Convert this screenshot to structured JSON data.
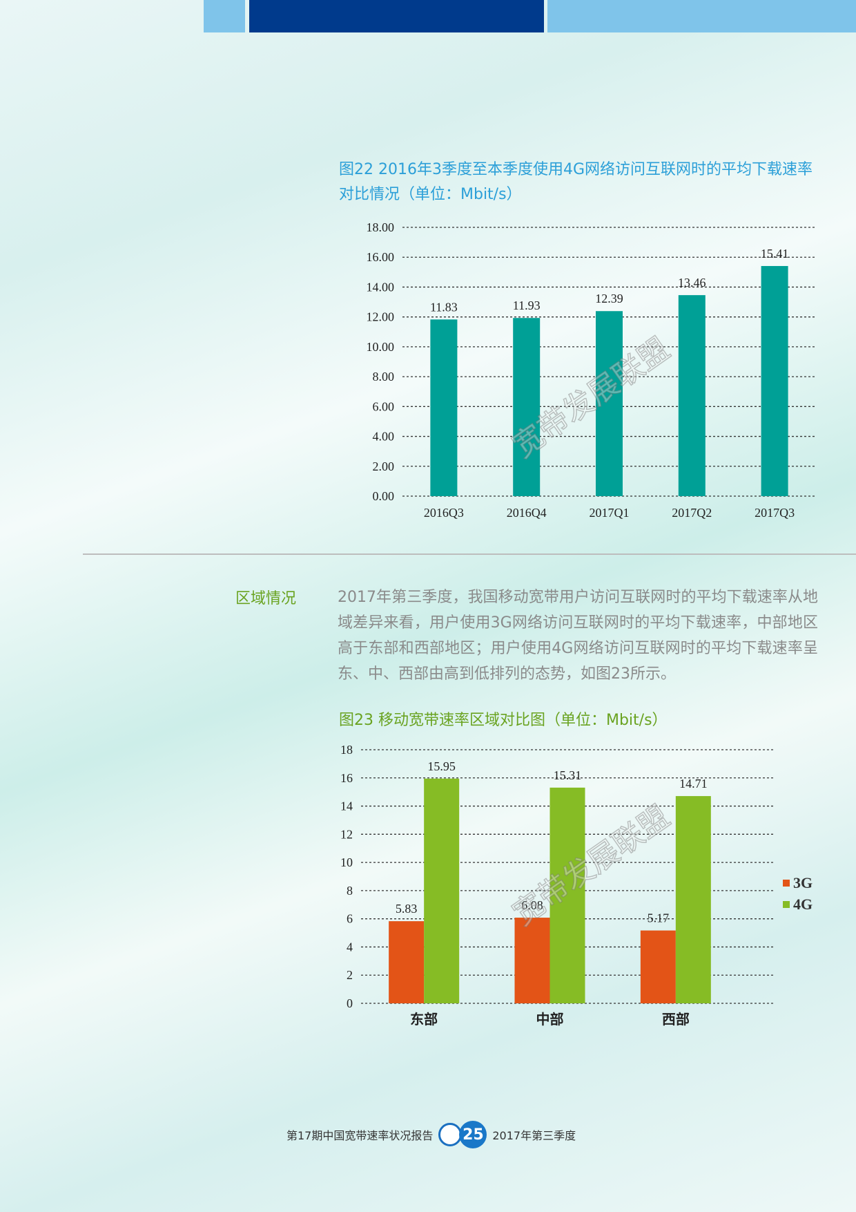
{
  "chart_data": [
    {
      "type": "bar",
      "title": "图22 2016年3季度至本季度使用4G网络访问互联网时的平均下载速率对比情况（单位：Mbit/s）",
      "categories": [
        "2016Q3",
        "2016Q4",
        "2017Q1",
        "2017Q2",
        "2017Q3"
      ],
      "values": [
        11.83,
        11.93,
        12.39,
        13.46,
        15.41
      ],
      "color": "#00a096",
      "ylim": [
        0,
        18
      ],
      "yticks": [
        {
          "value": 0,
          "label": "0.00"
        },
        {
          "value": 2,
          "label": "2.00"
        },
        {
          "value": 4,
          "label": "4.00"
        },
        {
          "value": 6,
          "label": "6.00"
        },
        {
          "value": 8,
          "label": "8.00"
        },
        {
          "value": 10,
          "label": "10.00"
        },
        {
          "value": 12,
          "label": "12.00"
        },
        {
          "value": 14,
          "label": "14.00"
        },
        {
          "value": 16,
          "label": "16.00"
        },
        {
          "value": 18,
          "label": "18.00"
        }
      ],
      "grid": true
    },
    {
      "type": "bar",
      "title": "图23 移动宽带速率区域对比图（单位：Mbit/s）",
      "categories": [
        "东部",
        "中部",
        "西部"
      ],
      "series": [
        {
          "name": "3G",
          "color": "#e35417",
          "values": [
            5.83,
            6.08,
            5.17
          ]
        },
        {
          "name": "4G",
          "color": "#86bc25",
          "values": [
            15.95,
            15.31,
            14.71
          ]
        }
      ],
      "ylim": [
        0,
        18
      ],
      "yticks": [
        0,
        2,
        4,
        6,
        8,
        10,
        12,
        14,
        16,
        18
      ],
      "grid": true,
      "legend": "right"
    }
  ],
  "section": {
    "label": "区域情况",
    "paragraph": "2017年第三季度，我国移动宽带用户访问互联网时的平均下载速率从地域差异来看，用户使用3G网络访问互联网时的平均下载速率，中部地区高于东部和西部地区；用户使用4G网络访问互联网时的平均下载速率呈东、中、西部由高到低排列的态势，如图23所示。"
  },
  "watermark": "宽带发展联盟",
  "footer": {
    "report": "第17期中国宽带速率状况报告",
    "page": "25",
    "period": "2017年第三季度"
  }
}
